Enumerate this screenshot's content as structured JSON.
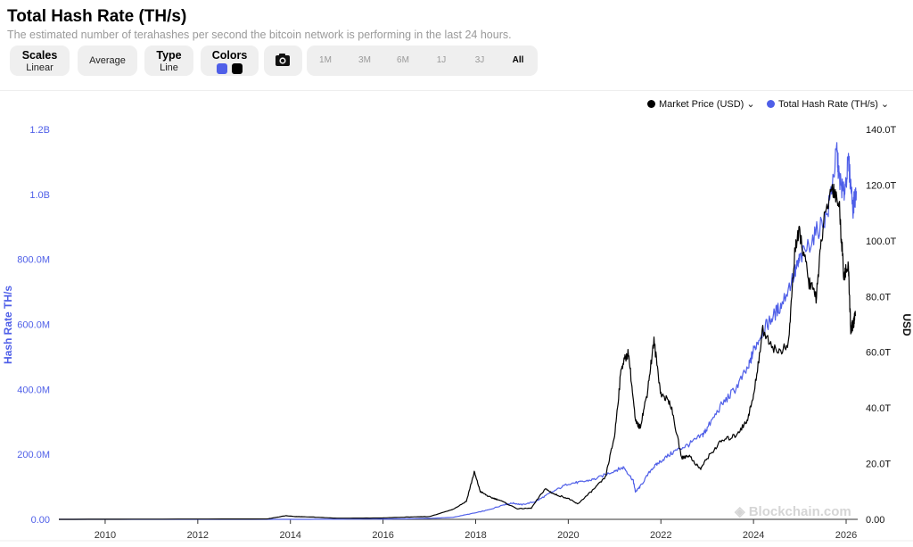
{
  "header": {
    "title": "Total Hash Rate (TH/s)",
    "subtitle": "The estimated number of terahashes per second the bitcoin network is performing in the last 24 hours."
  },
  "toolbar": {
    "scales": {
      "title": "Scales",
      "value": "Linear"
    },
    "average": {
      "label": "Average"
    },
    "type": {
      "title": "Type",
      "value": "Line"
    },
    "colors": {
      "title": "Colors",
      "swatch1": "#4f5fe8",
      "swatch2": "#000000"
    },
    "camera_icon": "camera-icon",
    "ranges": [
      "1M",
      "3M",
      "6M",
      "1J",
      "3J",
      "All"
    ],
    "active_range": "All"
  },
  "legend": {
    "market_price": "Market Price (USD)",
    "hash_rate": "Total Hash Rate (TH/s)"
  },
  "watermark": "Blockchain.com",
  "colors": {
    "hash": "#4f5fe8",
    "price": "#000000",
    "left_axis": "#4f5fe8"
  },
  "chart_data": {
    "type": "line",
    "left_axis": {
      "label": "Hash Rate TH/s",
      "ticks": [
        "0.00",
        "200.0M",
        "400.0M",
        "600.0M",
        "800.0M",
        "1.0B",
        "1.2B"
      ],
      "range": [
        0,
        1200000000
      ]
    },
    "right_axis": {
      "label": "USD",
      "ticks": [
        "0.00",
        "20.0T",
        "40.0T",
        "60.0T",
        "80.0T",
        "100.0T",
        "120.0T",
        "140.0T"
      ],
      "range": [
        0,
        140000000000000
      ]
    },
    "x_axis": {
      "ticks": [
        "2010",
        "2012",
        "2014",
        "2016",
        "2018",
        "2020",
        "2022",
        "2024",
        "2026"
      ],
      "range": [
        2009.0,
        2026.25
      ]
    },
    "series": [
      {
        "name": "Total Hash Rate (TH/s)",
        "axis": "left",
        "x": [
          2009.0,
          2013.0,
          2014.0,
          2015.0,
          2016.0,
          2016.5,
          2017.0,
          2017.5,
          2018.0,
          2018.3,
          2018.6,
          2018.8,
          2019.0,
          2019.3,
          2019.6,
          2020.0,
          2020.3,
          2020.6,
          2021.0,
          2021.2,
          2021.4,
          2021.45,
          2021.55,
          2021.8,
          2022.0,
          2022.3,
          2022.6,
          2022.9,
          2023.0,
          2023.3,
          2023.6,
          2023.9,
          2024.0,
          2024.2,
          2024.4,
          2024.6,
          2024.9,
          2025.0,
          2025.3,
          2025.6,
          2025.8,
          2025.85,
          2025.95,
          2026.05,
          2026.15,
          2026.22
        ],
        "values": [
          0,
          0,
          0,
          300000,
          1000000,
          1500000,
          3000000,
          6000000,
          20000000,
          30000000,
          45000000,
          50000000,
          45000000,
          55000000,
          80000000,
          110000000,
          115000000,
          125000000,
          150000000,
          160000000,
          120000000,
          85000000,
          100000000,
          155000000,
          180000000,
          210000000,
          230000000,
          260000000,
          280000000,
          350000000,
          400000000,
          470000000,
          520000000,
          580000000,
          620000000,
          660000000,
          760000000,
          800000000,
          870000000,
          940000000,
          1130000000,
          1050000000,
          1000000000,
          1100000000,
          960000000,
          1010000000
        ]
      },
      {
        "name": "Market Price (USD)",
        "axis": "right",
        "x": [
          2009.0,
          2013.5,
          2013.9,
          2014.1,
          2014.5,
          2015.0,
          2016.0,
          2016.5,
          2017.0,
          2017.5,
          2017.8,
          2017.97,
          2018.1,
          2018.3,
          2018.5,
          2018.9,
          2019.2,
          2019.5,
          2019.7,
          2020.0,
          2020.2,
          2020.5,
          2020.8,
          2021.0,
          2021.15,
          2021.3,
          2021.45,
          2021.55,
          2021.7,
          2021.85,
          2022.0,
          2022.2,
          2022.45,
          2022.6,
          2022.85,
          2023.0,
          2023.3,
          2023.6,
          2023.85,
          2024.0,
          2024.2,
          2024.5,
          2024.75,
          2024.9,
          2025.0,
          2025.2,
          2025.35,
          2025.5,
          2025.7,
          2025.85,
          2025.95,
          2026.05,
          2026.1,
          2026.15,
          2026.2
        ],
        "values": [
          0,
          150000000000,
          1300000000000,
          1000000000000,
          800000000000,
          400000000000,
          500000000000,
          800000000000,
          1000000000000,
          3500000000000,
          6500000000000,
          17000000000000,
          10000000000000,
          8000000000000,
          7000000000000,
          3800000000000,
          4000000000000,
          11000000000000,
          9000000000000,
          7500000000000,
          5500000000000,
          10000000000000,
          15000000000000,
          30000000000000,
          55000000000000,
          60000000000000,
          35000000000000,
          33000000000000,
          45000000000000,
          64000000000000,
          45000000000000,
          42000000000000,
          22000000000000,
          23000000000000,
          18000000000000,
          22000000000000,
          28000000000000,
          30000000000000,
          35000000000000,
          44000000000000,
          68000000000000,
          60000000000000,
          62000000000000,
          98000000000000,
          103000000000000,
          85000000000000,
          80000000000000,
          105000000000000,
          120000000000000,
          113000000000000,
          88000000000000,
          90000000000000,
          68000000000000,
          70000000000000,
          73000000000000
        ]
      }
    ],
    "grid": false,
    "legend_position": "top-right"
  }
}
